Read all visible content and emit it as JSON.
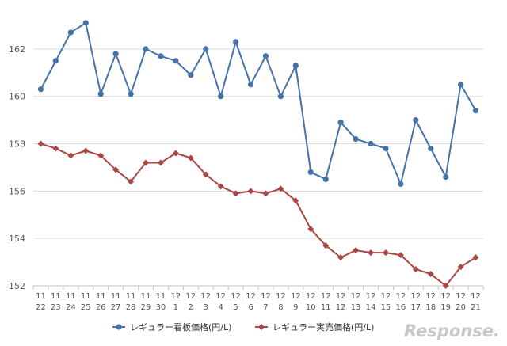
{
  "chart_data": {
    "type": "line",
    "categories": [
      [
        "11",
        "22"
      ],
      [
        "11",
        "23"
      ],
      [
        "11",
        "24"
      ],
      [
        "11",
        "25"
      ],
      [
        "11",
        "26"
      ],
      [
        "11",
        "27"
      ],
      [
        "11",
        "28"
      ],
      [
        "11",
        "29"
      ],
      [
        "11",
        "30"
      ],
      [
        "12",
        "1"
      ],
      [
        "12",
        "2"
      ],
      [
        "12",
        "3"
      ],
      [
        "12",
        "4"
      ],
      [
        "12",
        "5"
      ],
      [
        "12",
        "6"
      ],
      [
        "12",
        "7"
      ],
      [
        "12",
        "8"
      ],
      [
        "12",
        "9"
      ],
      [
        "12",
        "10"
      ],
      [
        "12",
        "11"
      ],
      [
        "12",
        "12"
      ],
      [
        "12",
        "13"
      ],
      [
        "12",
        "14"
      ],
      [
        "12",
        "15"
      ],
      [
        "12",
        "16"
      ],
      [
        "12",
        "17"
      ],
      [
        "12",
        "18"
      ],
      [
        "12",
        "19"
      ],
      [
        "12",
        "20"
      ],
      [
        "12",
        "21"
      ]
    ],
    "series": [
      {
        "name": "レギュラー看板価格(円/L)",
        "color": "#4572a7",
        "marker": "circle",
        "values": [
          160.3,
          161.5,
          162.7,
          163.1,
          160.1,
          161.8,
          160.1,
          162.0,
          161.7,
          161.5,
          160.9,
          162.0,
          160.0,
          162.3,
          160.5,
          161.7,
          160.0,
          161.3,
          156.8,
          156.5,
          158.9,
          158.2,
          158.0,
          157.8,
          156.3,
          159.0,
          157.8,
          156.6,
          160.5,
          159.4
        ]
      },
      {
        "name": "レギュラー実売価格(円/L)",
        "color": "#aa4643",
        "marker": "diamond",
        "values": [
          158.0,
          157.8,
          157.5,
          157.7,
          157.5,
          156.9,
          156.4,
          157.2,
          157.2,
          157.6,
          157.4,
          156.7,
          156.2,
          155.9,
          156.0,
          155.9,
          156.1,
          155.6,
          154.4,
          153.7,
          153.2,
          153.5,
          153.4,
          153.4,
          153.3,
          152.7,
          152.5,
          152.0,
          152.8,
          153.2
        ]
      }
    ],
    "ylim": [
      152,
      163.4
    ],
    "yticks": [
      152,
      154,
      156,
      158,
      160,
      162
    ],
    "grid": true,
    "legend_position": "bottom"
  },
  "watermark": {
    "logo_text": "Response."
  }
}
